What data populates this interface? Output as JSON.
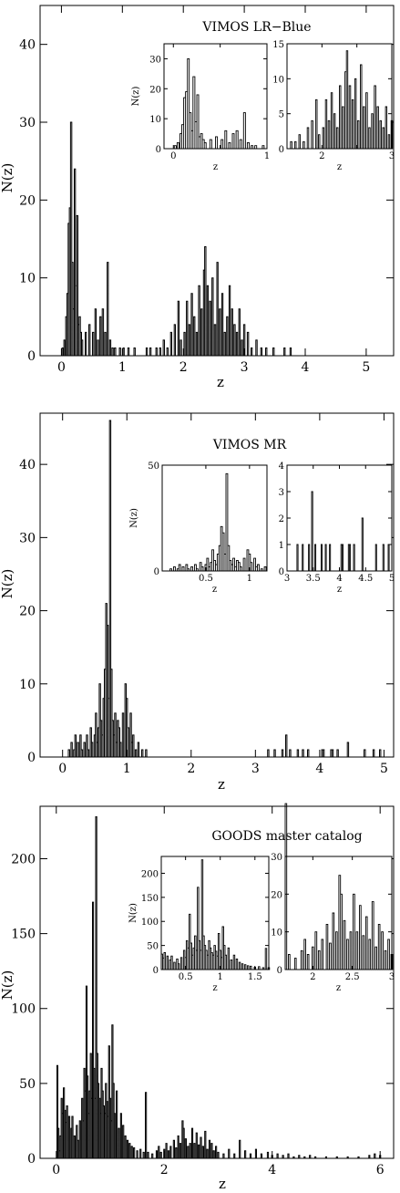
{
  "chart_data": [
    {
      "type": "histogram",
      "title": "VIMOS LR−Blue",
      "xlabel": "z",
      "ylabel": "N(z)",
      "xlim": [
        -0.35,
        5.45
      ],
      "ylim": [
        0,
        45
      ],
      "xticks": [
        0,
        1,
        2,
        3,
        4,
        5
      ],
      "yticks": [
        0,
        10,
        20,
        30,
        40
      ],
      "bin_width": 0.02,
      "peaks": [
        [
          0.02,
          1
        ],
        [
          0.05,
          2
        ],
        [
          0.08,
          5
        ],
        [
          0.1,
          8
        ],
        [
          0.12,
          17
        ],
        [
          0.14,
          19
        ],
        [
          0.16,
          30
        ],
        [
          0.18,
          12
        ],
        [
          0.2,
          6
        ],
        [
          0.22,
          24
        ],
        [
          0.24,
          9
        ],
        [
          0.26,
          18
        ],
        [
          0.28,
          4
        ],
        [
          0.3,
          5
        ],
        [
          0.32,
          3
        ],
        [
          0.34,
          2
        ],
        [
          0.4,
          3
        ],
        [
          0.46,
          4
        ],
        [
          0.52,
          3
        ],
        [
          0.56,
          6
        ],
        [
          0.6,
          2
        ],
        [
          0.64,
          5
        ],
        [
          0.68,
          6
        ],
        [
          0.72,
          3
        ],
        [
          0.76,
          12
        ],
        [
          0.8,
          2
        ],
        [
          0.84,
          1
        ],
        [
          0.88,
          1
        ],
        [
          0.96,
          1
        ],
        [
          1.02,
          1
        ],
        [
          1.1,
          1
        ],
        [
          1.2,
          1
        ],
        [
          1.4,
          1
        ],
        [
          1.46,
          1
        ],
        [
          1.56,
          1
        ],
        [
          1.62,
          1
        ],
        [
          1.68,
          2
        ],
        [
          1.74,
          1
        ],
        [
          1.8,
          3
        ],
        [
          1.86,
          4
        ],
        [
          1.92,
          7
        ],
        [
          1.96,
          2
        ],
        [
          2.02,
          3
        ],
        [
          2.06,
          7
        ],
        [
          2.1,
          4
        ],
        [
          2.14,
          8
        ],
        [
          2.18,
          5
        ],
        [
          2.22,
          3
        ],
        [
          2.26,
          9
        ],
        [
          2.3,
          6
        ],
        [
          2.34,
          11
        ],
        [
          2.36,
          14
        ],
        [
          2.4,
          9
        ],
        [
          2.44,
          7
        ],
        [
          2.48,
          10
        ],
        [
          2.52,
          4
        ],
        [
          2.56,
          12
        ],
        [
          2.6,
          6
        ],
        [
          2.64,
          8
        ],
        [
          2.68,
          3
        ],
        [
          2.72,
          5
        ],
        [
          2.76,
          9
        ],
        [
          2.8,
          6
        ],
        [
          2.84,
          4
        ],
        [
          2.88,
          3
        ],
        [
          2.92,
          6
        ],
        [
          2.96,
          2
        ],
        [
          3.0,
          4
        ],
        [
          3.06,
          3
        ],
        [
          3.12,
          1
        ],
        [
          3.2,
          2
        ],
        [
          3.28,
          1
        ],
        [
          3.36,
          1
        ],
        [
          3.48,
          1
        ],
        [
          3.66,
          1
        ],
        [
          3.76,
          1
        ]
      ],
      "insets": [
        {
          "xlim": [
            -0.1,
            1.0
          ],
          "ylim": [
            0,
            35
          ],
          "xticks": [
            0,
            0.5,
            1
          ],
          "xtick_labels": [
            "0",
            "",
            "1"
          ],
          "yticks": [
            0,
            10,
            20,
            30
          ],
          "xlabel": "z",
          "ylabel": "N(z)",
          "range": [
            0,
            1
          ]
        },
        {
          "xlim": [
            1.5,
            3.0
          ],
          "ylim": [
            0,
            15
          ],
          "xticks": [
            2,
            2.5,
            3
          ],
          "xtick_labels": [
            "2",
            "",
            "3"
          ],
          "yticks": [
            0,
            5,
            10,
            15
          ],
          "xlabel": "z",
          "ylabel": "",
          "range": [
            1.5,
            3.0
          ]
        }
      ]
    },
    {
      "type": "histogram",
      "title": "VIMOS MR",
      "xlabel": "z",
      "ylabel": "N(z)",
      "xlim": [
        -0.35,
        5.15
      ],
      "ylim": [
        0,
        47
      ],
      "xticks": [
        0,
        1,
        2,
        3,
        4,
        5
      ],
      "yticks": [
        0,
        10,
        20,
        30,
        40
      ],
      "bin_width": 0.02,
      "peaks": [
        [
          0.1,
          1
        ],
        [
          0.14,
          2
        ],
        [
          0.18,
          1
        ],
        [
          0.2,
          3
        ],
        [
          0.24,
          2
        ],
        [
          0.28,
          3
        ],
        [
          0.3,
          1
        ],
        [
          0.34,
          2
        ],
        [
          0.38,
          3
        ],
        [
          0.4,
          1
        ],
        [
          0.44,
          4
        ],
        [
          0.46,
          2
        ],
        [
          0.5,
          3
        ],
        [
          0.52,
          6
        ],
        [
          0.54,
          2
        ],
        [
          0.56,
          4
        ],
        [
          0.58,
          10
        ],
        [
          0.6,
          5
        ],
        [
          0.62,
          3
        ],
        [
          0.64,
          8
        ],
        [
          0.66,
          12
        ],
        [
          0.68,
          21
        ],
        [
          0.7,
          18
        ],
        [
          0.72,
          8
        ],
        [
          0.74,
          46
        ],
        [
          0.76,
          12
        ],
        [
          0.78,
          5
        ],
        [
          0.8,
          3
        ],
        [
          0.82,
          6
        ],
        [
          0.84,
          2
        ],
        [
          0.86,
          5
        ],
        [
          0.88,
          4
        ],
        [
          0.9,
          2
        ],
        [
          0.94,
          6
        ],
        [
          0.98,
          10
        ],
        [
          1.0,
          8
        ],
        [
          1.02,
          4
        ],
        [
          1.06,
          6
        ],
        [
          1.08,
          2
        ],
        [
          1.1,
          3
        ],
        [
          1.14,
          1
        ],
        [
          1.18,
          2
        ],
        [
          1.24,
          1
        ],
        [
          1.3,
          1
        ],
        [
          3.2,
          1
        ],
        [
          3.3,
          1
        ],
        [
          3.42,
          1
        ],
        [
          3.48,
          3
        ],
        [
          3.54,
          1
        ],
        [
          3.66,
          1
        ],
        [
          3.74,
          1
        ],
        [
          3.82,
          1
        ],
        [
          4.04,
          1
        ],
        [
          4.06,
          1
        ],
        [
          4.18,
          1
        ],
        [
          4.2,
          1
        ],
        [
          4.28,
          1
        ],
        [
          4.44,
          2
        ],
        [
          4.7,
          1
        ],
        [
          4.84,
          1
        ],
        [
          4.94,
          1
        ]
      ],
      "insets": [
        {
          "xlim": [
            0.0,
            1.2
          ],
          "ylim": [
            0,
            50
          ],
          "xticks": [
            0.5,
            1
          ],
          "xtick_labels": [
            "0.5",
            "1"
          ],
          "yticks": [
            0,
            50
          ],
          "xlabel": "z",
          "ylabel": "N(z)",
          "range": [
            0,
            1.2
          ]
        },
        {
          "xlim": [
            3.0,
            5.0
          ],
          "ylim": [
            0,
            4
          ],
          "xticks": [
            3,
            3.5,
            4,
            4.5,
            5
          ],
          "xtick_labels": [
            "3",
            "3.5",
            "4",
            "4.5",
            "5"
          ],
          "yticks": [
            0,
            1,
            2,
            3,
            4
          ],
          "xlabel": "z",
          "ylabel": "",
          "range": [
            3.0,
            5.0
          ]
        }
      ]
    },
    {
      "type": "histogram",
      "title": "GOODS master catalog",
      "xlabel": "z",
      "ylabel": "N(z)",
      "xlim": [
        -0.3,
        6.25
      ],
      "ylim": [
        0,
        235
      ],
      "xticks": [
        0,
        2,
        4,
        6
      ],
      "yticks": [
        0,
        50,
        100,
        150,
        200
      ],
      "bin_width": 0.02,
      "peaks": [
        [
          0.02,
          62
        ],
        [
          0.04,
          20
        ],
        [
          0.06,
          5
        ],
        [
          0.08,
          15
        ],
        [
          0.1,
          40
        ],
        [
          0.12,
          30
        ],
        [
          0.14,
          47
        ],
        [
          0.16,
          32
        ],
        [
          0.18,
          24
        ],
        [
          0.2,
          35
        ],
        [
          0.24,
          28
        ],
        [
          0.28,
          20
        ],
        [
          0.3,
          28
        ],
        [
          0.34,
          15
        ],
        [
          0.38,
          22
        ],
        [
          0.4,
          12
        ],
        [
          0.44,
          25
        ],
        [
          0.48,
          40
        ],
        [
          0.5,
          25
        ],
        [
          0.52,
          60
        ],
        [
          0.54,
          45
        ],
        [
          0.56,
          115
        ],
        [
          0.58,
          55
        ],
        [
          0.6,
          30
        ],
        [
          0.62,
          45
        ],
        [
          0.64,
          70
        ],
        [
          0.66,
          40
        ],
        [
          0.68,
          171
        ],
        [
          0.7,
          60
        ],
        [
          0.72,
          40
        ],
        [
          0.74,
          228
        ],
        [
          0.76,
          70
        ],
        [
          0.78,
          50
        ],
        [
          0.8,
          40
        ],
        [
          0.82,
          30
        ],
        [
          0.84,
          60
        ],
        [
          0.86,
          45
        ],
        [
          0.88,
          35
        ],
        [
          0.9,
          30
        ],
        [
          0.92,
          50
        ],
        [
          0.94,
          38
        ],
        [
          0.96,
          28
        ],
        [
          0.98,
          75
        ],
        [
          1.0,
          40
        ],
        [
          1.02,
          25
        ],
        [
          1.04,
          89
        ],
        [
          1.06,
          50
        ],
        [
          1.08,
          30
        ],
        [
          1.12,
          45
        ],
        [
          1.16,
          20
        ],
        [
          1.2,
          30
        ],
        [
          1.24,
          22
        ],
        [
          1.28,
          15
        ],
        [
          1.32,
          12
        ],
        [
          1.36,
          10
        ],
        [
          1.4,
          8
        ],
        [
          1.44,
          7
        ],
        [
          1.5,
          5
        ],
        [
          1.56,
          6
        ],
        [
          1.62,
          4
        ],
        [
          1.66,
          44
        ],
        [
          1.7,
          4
        ],
        [
          1.78,
          3
        ],
        [
          1.86,
          5
        ],
        [
          1.9,
          8
        ],
        [
          1.94,
          4
        ],
        [
          2.0,
          6
        ],
        [
          2.04,
          10
        ],
        [
          2.08,
          5
        ],
        [
          2.12,
          8
        ],
        [
          2.18,
          12
        ],
        [
          2.22,
          7
        ],
        [
          2.26,
          15
        ],
        [
          2.3,
          10
        ],
        [
          2.34,
          25
        ],
        [
          2.36,
          20
        ],
        [
          2.4,
          13
        ],
        [
          2.44,
          8
        ],
        [
          2.48,
          10
        ],
        [
          2.52,
          20
        ],
        [
          2.56,
          10
        ],
        [
          2.6,
          17
        ],
        [
          2.64,
          9
        ],
        [
          2.68,
          14
        ],
        [
          2.72,
          8
        ],
        [
          2.76,
          18
        ],
        [
          2.8,
          6
        ],
        [
          2.84,
          12
        ],
        [
          2.88,
          10
        ],
        [
          2.92,
          5
        ],
        [
          2.96,
          8
        ],
        [
          3.0,
          4
        ],
        [
          3.1,
          3
        ],
        [
          3.2,
          6
        ],
        [
          3.3,
          3
        ],
        [
          3.4,
          12
        ],
        [
          3.5,
          5
        ],
        [
          3.6,
          3
        ],
        [
          3.7,
          6
        ],
        [
          3.8,
          3
        ],
        [
          3.92,
          4
        ],
        [
          4.0,
          2
        ],
        [
          4.1,
          3
        ],
        [
          4.2,
          2
        ],
        [
          4.3,
          3
        ],
        [
          4.4,
          1
        ],
        [
          4.5,
          2
        ],
        [
          4.6,
          1
        ],
        [
          4.7,
          2
        ],
        [
          4.8,
          1
        ],
        [
          5.0,
          1
        ],
        [
          5.2,
          1
        ],
        [
          5.4,
          1
        ],
        [
          5.6,
          1
        ],
        [
          5.8,
          2
        ],
        [
          5.9,
          3
        ],
        [
          6.0,
          2
        ]
      ],
      "insets": [
        {
          "xlim": [
            0.15,
            1.7
          ],
          "ylim": [
            0,
            235
          ],
          "xticks": [
            0.5,
            1,
            1.5
          ],
          "xtick_labels": [
            "0.5",
            "1",
            "1.5"
          ],
          "yticks": [
            0,
            50,
            100,
            150,
            200
          ],
          "xlabel": "z",
          "ylabel": "N(z)",
          "range": [
            0.15,
            1.7
          ]
        },
        {
          "xlim": [
            1.65,
            3.0
          ],
          "ylim": [
            0,
            30
          ],
          "xticks": [
            2,
            2.5,
            3
          ],
          "xtick_labels": [
            "2",
            "2.5",
            "3"
          ],
          "yticks": [
            0,
            10,
            20,
            30
          ],
          "xlabel": "z",
          "ylabel": "",
          "range": [
            1.65,
            3.0
          ]
        }
      ]
    }
  ]
}
